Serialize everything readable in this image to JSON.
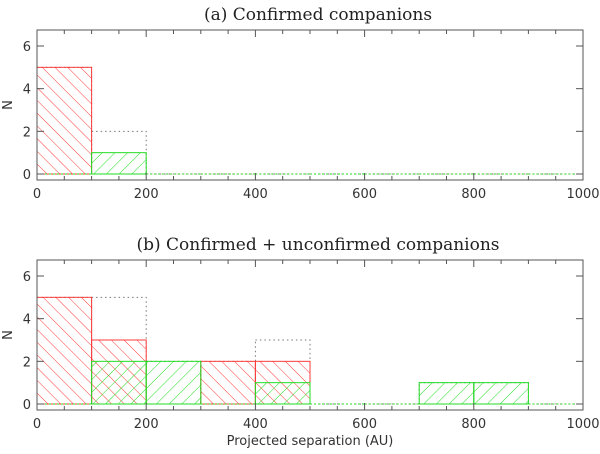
{
  "chart_data": [
    {
      "type": "bar",
      "title": "(a) Confirmed companions",
      "xlabel": "",
      "ylabel": "N",
      "xlim": [
        0,
        1000
      ],
      "ylim": [
        0,
        6
      ],
      "xticks": [
        "0",
        "200",
        "400",
        "600",
        "800",
        "1000"
      ],
      "yticks": [
        "0",
        "2",
        "4",
        "6"
      ],
      "bin_edges": [
        0,
        100,
        200,
        300,
        400,
        500,
        600,
        700,
        800,
        900,
        1000
      ],
      "series": [
        {
          "style": "dotted-outline",
          "color": "#777777",
          "values": [
            5,
            2,
            0,
            0,
            0,
            0,
            0,
            0,
            0,
            0
          ]
        },
        {
          "style": "hatch-descending",
          "color": "#ff3b3b",
          "values": [
            5,
            0,
            0,
            0,
            0,
            0,
            0,
            0,
            0,
            0
          ]
        },
        {
          "style": "hatch-ascending",
          "color": "#22dd22",
          "values": [
            0,
            1,
            0,
            0,
            0,
            0,
            0,
            0,
            0,
            0
          ]
        }
      ]
    },
    {
      "type": "bar",
      "title": "(b) Confirmed + unconfirmed companions",
      "xlabel": "Projected separation (AU)",
      "ylabel": "N",
      "xlim": [
        0,
        1000
      ],
      "ylim": [
        0,
        6
      ],
      "xticks": [
        "0",
        "200",
        "400",
        "600",
        "800",
        "1000"
      ],
      "yticks": [
        "0",
        "2",
        "4",
        "6"
      ],
      "bin_edges": [
        0,
        100,
        200,
        300,
        400,
        500,
        600,
        700,
        800,
        900,
        1000
      ],
      "series": [
        {
          "style": "dotted-outline",
          "color": "#777777",
          "values": [
            5,
            5,
            2,
            2,
            3,
            0,
            0,
            1,
            1,
            0
          ]
        },
        {
          "style": "hatch-descending",
          "color": "#ff3b3b",
          "values": [
            5,
            3,
            0,
            2,
            2,
            0,
            0,
            0,
            0,
            0
          ]
        },
        {
          "style": "hatch-ascending",
          "color": "#22dd22",
          "values": [
            0,
            2,
            2,
            0,
            1,
            0,
            0,
            1,
            1,
            0
          ]
        }
      ]
    }
  ]
}
